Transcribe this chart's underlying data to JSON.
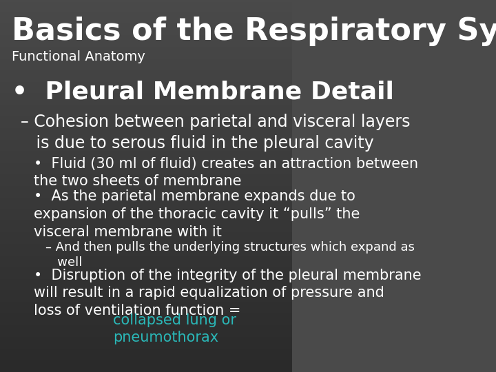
{
  "bg_color_top": "#4a4a4a",
  "bg_color_bottom": "#2a2a2a",
  "title": "Basics of the Respiratory System",
  "subtitle": "Functional Anatomy",
  "title_color": "#ffffff",
  "subtitle_color": "#ffffff",
  "title_fontsize": 32,
  "subtitle_fontsize": 14,
  "text_color": "#ffffff",
  "link_color": "#2ab8b8",
  "bullet1": "Pleural Membrane Detail",
  "bullet1_fontsize": 26,
  "dash1": "– Cohesion between parietal and visceral layers\n   is due to serous fluid in the pleural cavity",
  "dash1_fontsize": 17,
  "sub_bullet1": "Fluid (30 ml of fluid) creates an attraction between\nthe two sheets of membrane",
  "sub_bullet2": "As the parietal membrane expands due to\nexpansion of the thoracic cavity it “pulls” the\nvisceral membrane with it",
  "sub_dash1": "– And then pulls the underlying structures which expand as\n   well",
  "sub_dash1_fontsize": 13,
  "sub_bullet3_part1": "Disruption of the integrity of the pleural membrane\nwill result in a rapid equalization of pressure and\nloss of ventilation function = ",
  "sub_bullet3_link": "collapsed lung or\npneumothorax",
  "sub_bullet_fontsize": 15
}
